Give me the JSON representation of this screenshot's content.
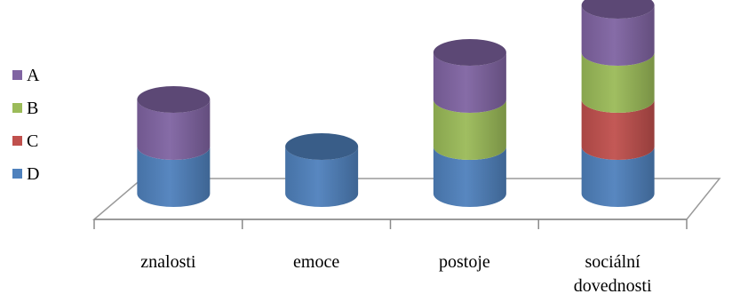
{
  "chart_data": {
    "type": "bar",
    "stacked": true,
    "three_d": true,
    "bar_shape": "cylinder",
    "categories": [
      "znalosti",
      "emoce",
      "postoje",
      "sociální dovednosti"
    ],
    "series": [
      {
        "name": "D",
        "color": "#4f81bd",
        "values": [
          1,
          1,
          1,
          1
        ]
      },
      {
        "name": "C",
        "color": "#c0504d",
        "values": [
          0,
          0,
          0,
          1
        ]
      },
      {
        "name": "B",
        "color": "#9bbb59",
        "values": [
          0,
          0,
          1,
          1
        ]
      },
      {
        "name": "A",
        "color": "#8064a2",
        "values": [
          1,
          0,
          1,
          1
        ]
      }
    ],
    "legend": {
      "position": "left",
      "order": [
        "A",
        "B",
        "C",
        "D"
      ]
    },
    "grid": false,
    "ylim": [
      0,
      4
    ]
  }
}
